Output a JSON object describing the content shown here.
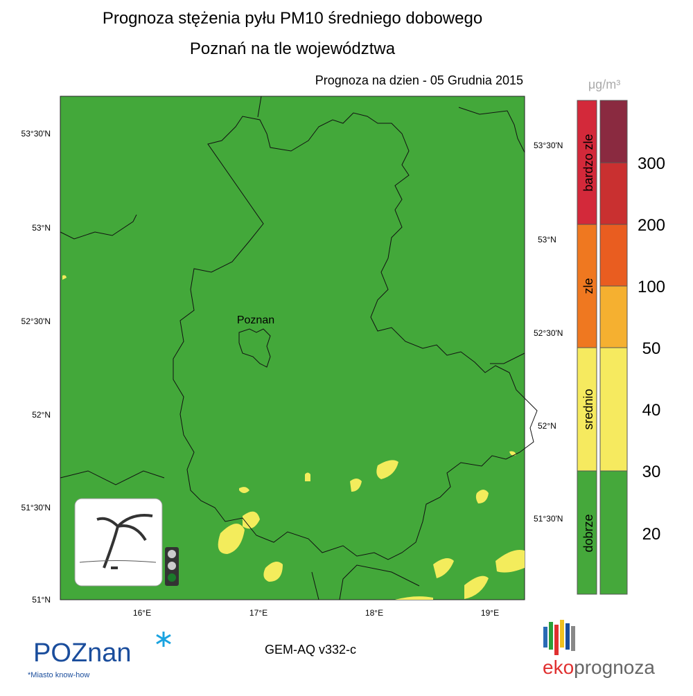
{
  "header": {
    "title": "Prognoza stężenia pyłu PM10 średniego dobowego",
    "subtitle": "Poznań na tle województwa",
    "forecast": "Prognoza na dzien -  05 Grudnia 2015"
  },
  "map": {
    "lat_left": [
      "53°30'N",
      "53°N",
      "52°30'N",
      "52°N",
      "51°30'N",
      "51°N"
    ],
    "lat_right": [
      "53°30'N",
      "53°N",
      "52°30'N",
      "52°N",
      "51°30'N"
    ],
    "lon": [
      "16°E",
      "17°E",
      "18°E",
      "19°E"
    ],
    "city": "Poznan"
  },
  "legend": {
    "unit": "μg/m³",
    "categories": [
      "bardzo zle",
      "zle",
      "srednio",
      "dobrze"
    ],
    "scale": [
      300,
      200,
      100,
      50,
      40,
      30,
      20
    ]
  },
  "footer": {
    "model": "GEM-AQ v332-c",
    "logo_left": "POZnan",
    "tagline": "*Miasto know-how",
    "logo_right_a": "eko",
    "logo_right_b": "prognoza"
  }
}
